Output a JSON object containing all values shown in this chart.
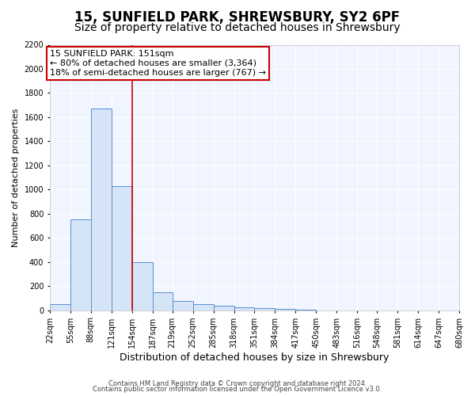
{
  "title1": "15, SUNFIELD PARK, SHREWSBURY, SY2 6PF",
  "title2": "Size of property relative to detached houses in Shrewsbury",
  "xlabel": "Distribution of detached houses by size in Shrewsbury",
  "ylabel": "Number of detached properties",
  "bar_edges": [
    22,
    55,
    88,
    121,
    154,
    187,
    219,
    252,
    285,
    318,
    351,
    384,
    417,
    450,
    483,
    516,
    548,
    581,
    614,
    647,
    680
  ],
  "bar_heights": [
    50,
    750,
    1670,
    1030,
    400,
    150,
    80,
    50,
    35,
    25,
    20,
    15,
    5,
    0,
    0,
    0,
    0,
    0,
    0,
    0
  ],
  "bar_color": "#d6e4f7",
  "bar_edgecolor": "#5b8fd4",
  "vline_x": 154,
  "vline_color": "#cc0000",
  "annotation_text": "15 SUNFIELD PARK: 151sqm\n← 80% of detached houses are smaller (3,364)\n18% of semi-detached houses are larger (767) →",
  "annotation_box_color": "#ffffff",
  "annotation_box_edgecolor": "#cc0000",
  "ylim": [
    0,
    2200
  ],
  "yticks": [
    0,
    200,
    400,
    600,
    800,
    1000,
    1200,
    1400,
    1600,
    1800,
    2000,
    2200
  ],
  "tick_labels": [
    "22sqm",
    "55sqm",
    "88sqm",
    "121sqm",
    "154sqm",
    "187sqm",
    "219sqm",
    "252sqm",
    "285sqm",
    "318sqm",
    "351sqm",
    "384sqm",
    "417sqm",
    "450sqm",
    "483sqm",
    "516sqm",
    "548sqm",
    "581sqm",
    "614sqm",
    "647sqm",
    "680sqm"
  ],
  "footer1": "Contains HM Land Registry data © Crown copyright and database right 2024.",
  "footer2": "Contains public sector information licensed under the Open Government Licence v3.0.",
  "bg_color": "#ffffff",
  "plot_bg_color": "#f0f5ff",
  "grid_color": "#ffffff",
  "title1_fontsize": 12,
  "title2_fontsize": 10,
  "xlabel_fontsize": 9,
  "ylabel_fontsize": 8,
  "annotation_fontsize": 8,
  "tick_fontsize": 7,
  "footer_fontsize": 6
}
